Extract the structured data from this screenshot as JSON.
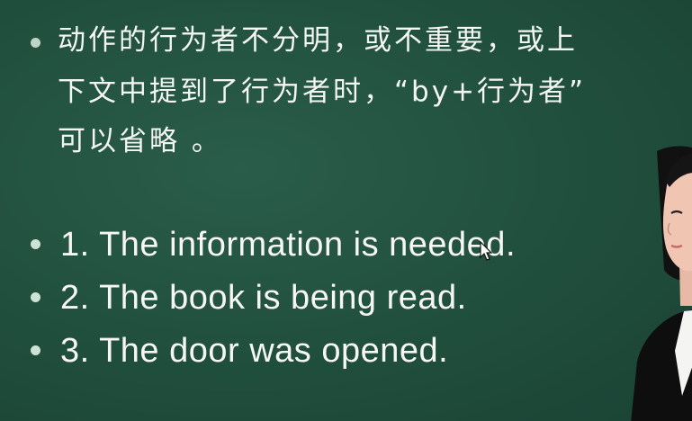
{
  "note": {
    "lines": [
      "动作的行为者不分明，或不重要，或上",
      "下文中提到了行为者时，“by+行为者”",
      "可以省略 。"
    ]
  },
  "examples": [
    "1. The information is needed.",
    "2. The book is being read.",
    "3. The door was opened."
  ]
}
